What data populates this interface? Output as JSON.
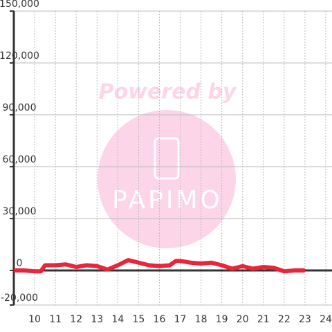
{
  "chart_data": {
    "type": "line",
    "watermark": [
      "Powered by",
      "PAPIMO"
    ],
    "x": [
      9,
      9.5,
      10,
      10.3,
      10.5,
      11,
      11.5,
      12,
      12.5,
      13,
      13.5,
      14,
      14.5,
      15,
      15.5,
      16,
      16.5,
      16.8,
      17,
      17.5,
      18,
      18.5,
      19,
      19.5,
      20,
      20.5,
      21,
      21.5,
      22,
      22.5,
      23
    ],
    "series": [
      {
        "color": "#e8253a",
        "values": [
          0,
          0,
          -500,
          -500,
          3000,
          3000,
          3500,
          2000,
          3000,
          2500,
          500,
          3000,
          6000,
          4500,
          3000,
          2500,
          3000,
          5500,
          5500,
          4500,
          4000,
          4500,
          3000,
          1000,
          2500,
          1000,
          2000,
          1500,
          -500,
          0,
          0
        ]
      }
    ],
    "xlim": [
      9,
      24.3
    ],
    "xticks": [
      10,
      11,
      12,
      13,
      14,
      15,
      16,
      17,
      18,
      19,
      20,
      21,
      22,
      23,
      24
    ],
    "ylim": [
      -20000,
      150000
    ],
    "yticks": [
      {
        "value": -20000,
        "label": "-20,000"
      },
      0,
      {
        "value": 30000,
        "label": "30,000"
      },
      {
        "value": 60000,
        "label": "60,000"
      },
      {
        "value": 90000,
        "label": "90,000"
      },
      {
        "value": 120000,
        "label": "120,000"
      },
      {
        "value": 150000,
        "label": "150,000"
      }
    ],
    "grid": true
  }
}
